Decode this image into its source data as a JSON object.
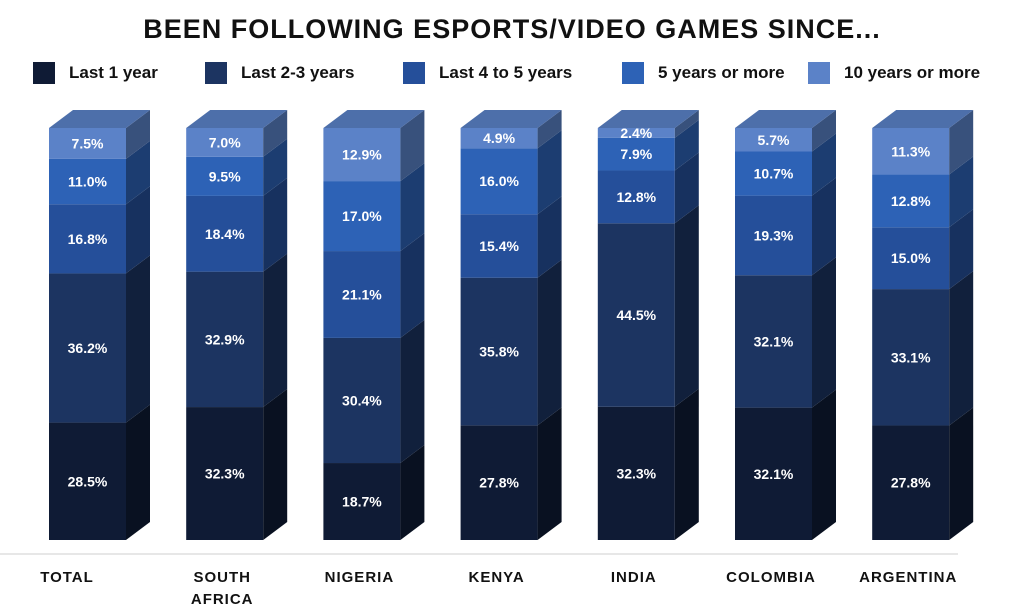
{
  "chart_data": {
    "type": "bar",
    "stacked": true,
    "title": "BEEN FOLLOWING ESPORTS/VIDEO GAMES SINCE...",
    "categories": [
      "TOTAL",
      "SOUTH AFRICA",
      "NIGERIA",
      "KENYA",
      "INDIA",
      "COLOMBIA",
      "ARGENTINA"
    ],
    "series": [
      {
        "name": "Last 1 year",
        "color": "#0f1b35",
        "values": [
          28.5,
          32.3,
          18.7,
          27.8,
          32.3,
          32.1,
          27.8
        ]
      },
      {
        "name": "Last 2-3 years",
        "color": "#1c3461",
        "values": [
          36.2,
          32.9,
          30.4,
          35.8,
          44.5,
          32.1,
          33.1
        ]
      },
      {
        "name": "Last 4 to 5 years",
        "color": "#254f9a",
        "values": [
          16.8,
          18.4,
          21.1,
          15.4,
          12.8,
          19.3,
          15.0
        ]
      },
      {
        "name": "5 years or more",
        "color": "#2d62b6",
        "values": [
          11.0,
          9.5,
          17.0,
          16.0,
          7.9,
          10.7,
          12.8
        ]
      },
      {
        "name": "10 years or more",
        "color": "#5b82c8",
        "values": [
          7.5,
          7.0,
          12.9,
          4.9,
          2.4,
          5.7,
          11.3
        ]
      }
    ],
    "value_suffix": "%",
    "ylim": [
      0,
      100
    ],
    "grid": false,
    "legend_position": "top",
    "bar_style": "3d"
  }
}
